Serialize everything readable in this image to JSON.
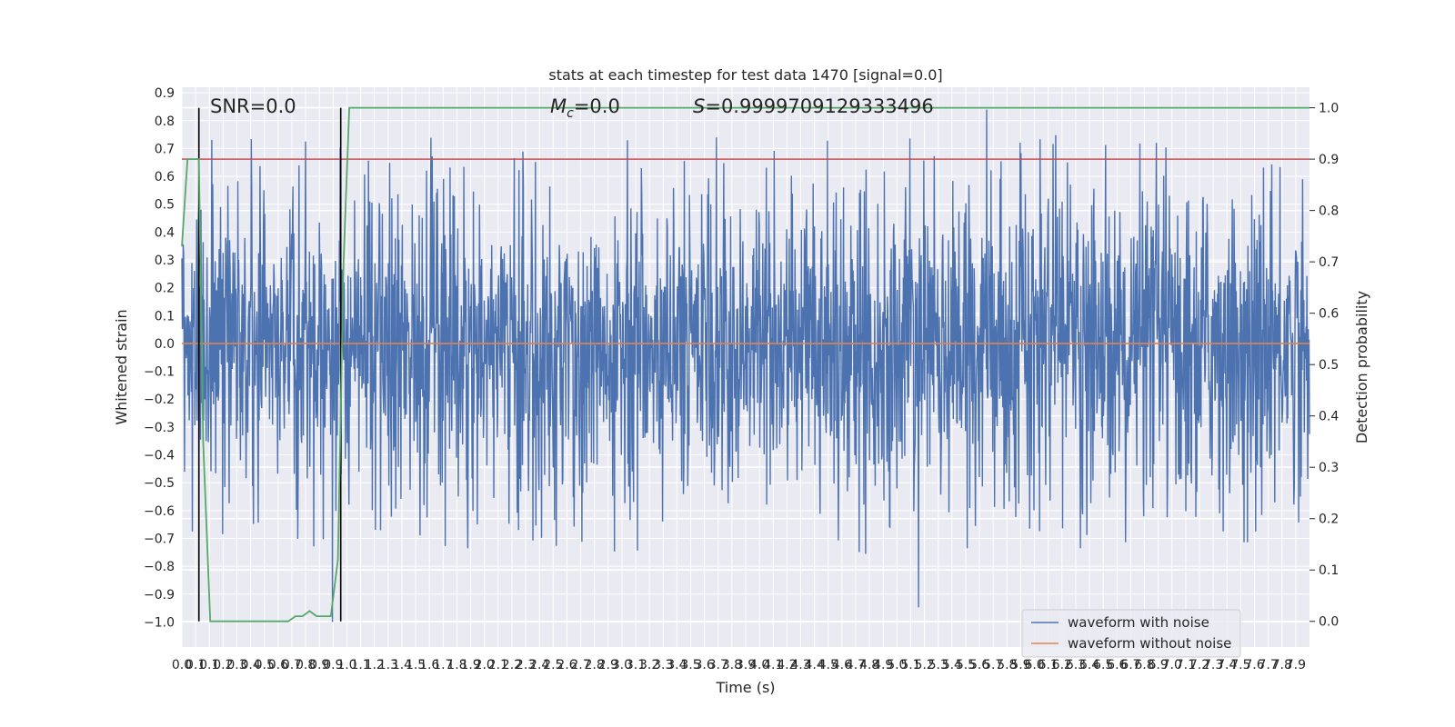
{
  "chart_data": {
    "type": "line",
    "title": "stats at each timestep for test data 1470 [signal=0.0]",
    "xlabel": "Time (s)",
    "ylabel": "Whitened strain",
    "y2label": "Detection probability",
    "xlim": [
      0.0,
      7.95
    ],
    "ylim": [
      -1.09,
      0.92
    ],
    "y2lim": [
      -0.05,
      1.04
    ],
    "x_ticks": [
      "0.0",
      "0.1",
      "0.1",
      "0.2",
      "0.3",
      "0.4",
      "0.5",
      "0.6",
      "0.7",
      "0.8",
      "0.9",
      "0.9",
      "1.0",
      "1.1",
      "1.2",
      "1.3",
      "1.4",
      "1.5",
      "1.6",
      "1.7",
      "1.8",
      "1.9",
      "2.0",
      "2.1",
      "2.2",
      "2.3",
      "2.4",
      "2.5",
      "2.6",
      "2.7",
      "2.8",
      "2.9",
      "3.0",
      "3.1",
      "3.2",
      "3.3",
      "3.4",
      "3.5",
      "3.6",
      "3.7",
      "3.8",
      "3.9",
      "4.0",
      "4.1",
      "4.2",
      "4.3",
      "4.4",
      "4.5",
      "4.6",
      "4.7",
      "4.8",
      "4.9",
      "5.0",
      "5.1",
      "5.2",
      "5.3",
      "5.4",
      "5.5",
      "5.6",
      "5.7",
      "5.8",
      "5.9",
      "6.0",
      "6.1",
      "6.2",
      "6.3",
      "6.4",
      "6.5",
      "6.6",
      "6.7",
      "6.8",
      "6.9",
      "7.0",
      "7.1",
      "7.2",
      "7.3",
      "7.4",
      "7.5",
      "7.6",
      "7.7",
      "7.8",
      "7.9"
    ],
    "y_ticks": [
      "0.9",
      "0.8",
      "0.7",
      "0.6",
      "0.5",
      "0.4",
      "0.3",
      "0.2",
      "0.1",
      "0.0",
      "−0.1",
      "−0.2",
      "−0.3",
      "−0.4",
      "−0.5",
      "−0.6",
      "−0.7",
      "−0.8",
      "−0.9",
      "−1.0"
    ],
    "y2_ticks": [
      "1.0",
      "0.9",
      "0.8",
      "0.7",
      "0.6",
      "0.5",
      "0.4",
      "0.3",
      "0.2",
      "0.1",
      "0.0"
    ],
    "annotations": {
      "snr": "SNR=0.0",
      "mc": "M",
      "mc_sub": "c",
      "mc_value": "=0.0",
      "s": "S",
      "s_value": "=0.9999709129333496"
    },
    "noise": {
      "seed": 1470,
      "envelope_typical": 0.28,
      "envelope_peak_max": 0.84,
      "envelope_trough_min": -1.0
    },
    "series": [
      {
        "name": "waveform with noise",
        "color": "#4c72b0",
        "kind": "noise"
      },
      {
        "name": "waveform without noise",
        "color": "#dd8452",
        "kind": "flat",
        "value": 0.0
      },
      {
        "color": "#55a868",
        "axis": "right",
        "x": [
          0.0,
          0.04,
          0.07,
          0.12,
          0.15,
          0.2,
          0.25,
          0.3,
          0.4,
          0.5,
          0.6,
          0.7,
          0.75,
          0.8,
          0.85,
          0.9,
          0.95,
          1.0,
          1.05,
          1.1,
          1.14,
          1.18,
          1.22,
          7.95
        ],
        "values": [
          0.73,
          0.9,
          0.9,
          0.9,
          0.35,
          0.0,
          0.0,
          0.0,
          0.0,
          0.0,
          0.0,
          0.0,
          0.0,
          0.01,
          0.01,
          0.02,
          0.01,
          0.01,
          0.01,
          0.12,
          0.7,
          1.0,
          1.0,
          1.0
        ]
      }
    ],
    "hlines": [
      {
        "y": 0.9,
        "axis": "right",
        "color": "#c44e52"
      }
    ],
    "vlines": [
      {
        "x": 0.12,
        "color": "#000000"
      },
      {
        "x": 1.12,
        "color": "#000000"
      }
    ],
    "grid": true,
    "legend_position": "lower-right"
  }
}
